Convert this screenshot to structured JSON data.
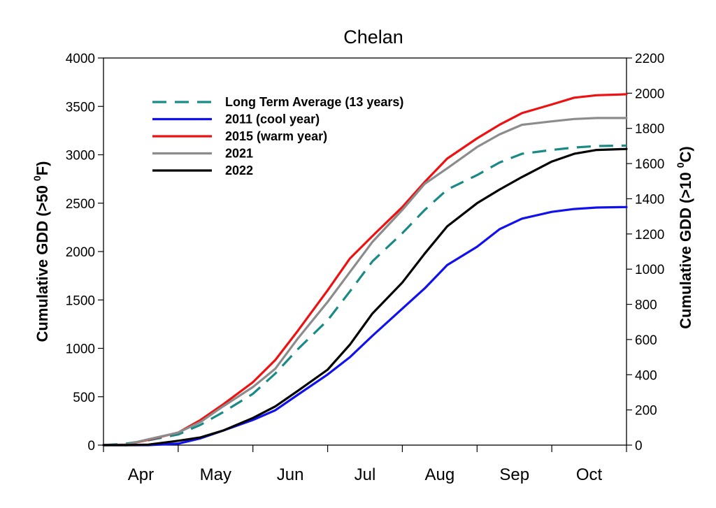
{
  "chart_data": {
    "type": "line",
    "title": "Chelan",
    "ylabel_left": "Cumulative GDD (>50 °F)",
    "ylabel_left_parts": [
      "Cumulative GDD (>50 ",
      "0",
      "F)"
    ],
    "ylabel_right": "Cumulative GDD (>10 °C)",
    "ylabel_right_parts": [
      "Cumulative GDD (>10 ",
      "0",
      "C)"
    ],
    "x_domain": [
      0,
      7
    ],
    "ylim_left": [
      0,
      4000
    ],
    "ylim_right": [
      0,
      2200
    ],
    "yticks_left": [
      "0",
      "500",
      "1000",
      "1500",
      "2000",
      "2500",
      "3000",
      "3500",
      "4000"
    ],
    "yticks_right": [
      "0",
      "200",
      "400",
      "600",
      "800",
      "1000",
      "1200",
      "1400",
      "1600",
      "1800",
      "2000",
      "2200"
    ],
    "months": [
      "Apr",
      "May",
      "Jun",
      "Jul",
      "Aug",
      "Sep",
      "Oct"
    ],
    "grid": false,
    "legend_position": "top-left",
    "series": [
      {
        "name": "Long Term Average (13 years)",
        "color": "#1a8a86",
        "dash": true,
        "x": [
          0,
          0.3,
          0.6,
          1.0,
          1.3,
          1.6,
          2.0,
          2.3,
          2.6,
          3.0,
          3.3,
          3.6,
          4.0,
          4.3,
          4.6,
          5.0,
          5.3,
          5.6,
          6.0,
          6.3,
          6.6,
          7.0
        ],
        "y": [
          0,
          15,
          50,
          110,
          210,
          340,
          530,
          740,
          990,
          1290,
          1590,
          1900,
          2190,
          2430,
          2640,
          2790,
          2920,
          3010,
          3050,
          3075,
          3090,
          3095
        ]
      },
      {
        "name": "2011 (cool year)",
        "color": "#1111ee",
        "dash": false,
        "x": [
          0,
          0.3,
          0.6,
          1.0,
          1.3,
          1.6,
          2.0,
          2.3,
          2.6,
          3.0,
          3.3,
          3.6,
          4.0,
          4.3,
          4.6,
          5.0,
          5.3,
          5.6,
          6.0,
          6.3,
          6.6,
          7.0
        ],
        "y": [
          0,
          0,
          0,
          15,
          70,
          150,
          260,
          360,
          520,
          730,
          910,
          1130,
          1410,
          1620,
          1860,
          2050,
          2230,
          2340,
          2410,
          2440,
          2455,
          2460
        ]
      },
      {
        "name": "2015 (warm year)",
        "color": "#ee1111",
        "dash": false,
        "x": [
          0,
          0.3,
          0.6,
          1.0,
          1.3,
          1.6,
          2.0,
          2.3,
          2.6,
          3.0,
          3.3,
          3.6,
          4.0,
          4.3,
          4.6,
          5.0,
          5.3,
          5.6,
          6.0,
          6.3,
          6.6,
          7.0
        ],
        "y": [
          0,
          5,
          55,
          130,
          260,
          420,
          650,
          880,
          1180,
          1600,
          1930,
          2160,
          2460,
          2720,
          2960,
          3170,
          3310,
          3430,
          3520,
          3590,
          3615,
          3625
        ]
      },
      {
        "name": "2021",
        "color": "#8c8c8c",
        "dash": false,
        "x": [
          0,
          0.3,
          0.6,
          1.0,
          1.3,
          1.6,
          2.0,
          2.3,
          2.6,
          3.0,
          3.3,
          3.6,
          4.0,
          4.3,
          4.6,
          5.0,
          5.3,
          5.6,
          6.0,
          6.3,
          6.6,
          7.0
        ],
        "y": [
          0,
          5,
          60,
          130,
          240,
          400,
          600,
          790,
          1100,
          1480,
          1790,
          2100,
          2430,
          2700,
          2860,
          3080,
          3210,
          3310,
          3345,
          3370,
          3380,
          3380
        ]
      },
      {
        "name": "2022",
        "color": "#000000",
        "dash": false,
        "x": [
          0,
          0.3,
          0.6,
          1.0,
          1.3,
          1.6,
          2.0,
          2.3,
          2.6,
          3.0,
          3.3,
          3.6,
          4.0,
          4.3,
          4.6,
          5.0,
          5.3,
          5.6,
          6.0,
          6.3,
          6.6,
          7.0
        ],
        "y": [
          0,
          0,
          5,
          45,
          80,
          150,
          280,
          400,
          560,
          780,
          1040,
          1360,
          1680,
          1980,
          2260,
          2500,
          2640,
          2770,
          2930,
          3010,
          3050,
          3060
        ]
      }
    ]
  }
}
